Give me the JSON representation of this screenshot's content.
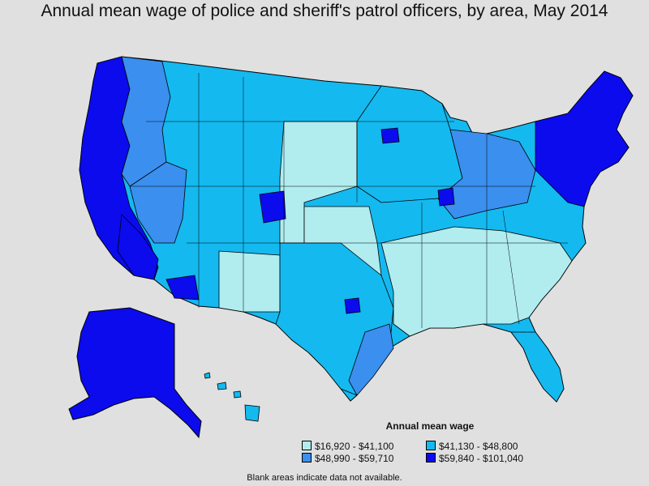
{
  "title": "Annual mean wage of police and sheriff's patrol officers, by area, May 2014",
  "legend": {
    "title": "Annual mean wage",
    "items": [
      {
        "label": "$16,920 - $41,100",
        "color": "#b1ecef"
      },
      {
        "label": "$41,130 - $48,800",
        "color": "#14b9ef"
      },
      {
        "label": "$48,990 - $59,710",
        "color": "#3a8fef"
      },
      {
        "label": "$59,840 - $101,040",
        "color": "#0b0bee"
      }
    ]
  },
  "footnote": "Blank areas indicate data not available.",
  "colors": {
    "background": "#e0e0e0",
    "border": "#000000"
  }
}
